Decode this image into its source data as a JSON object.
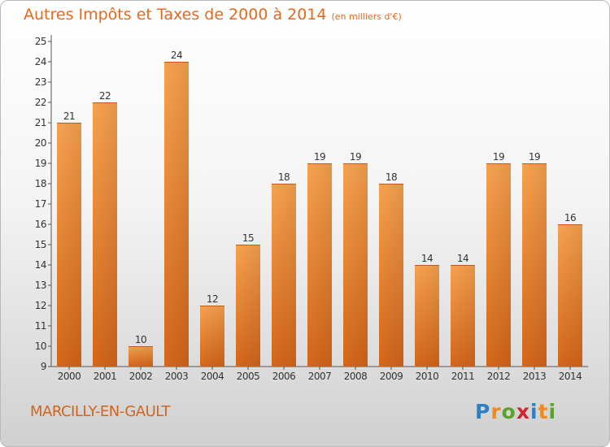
{
  "header": {
    "title": "Autres Impôts et Taxes de 2000 à 2014",
    "unit": "(en milliers d'€)"
  },
  "footer": {
    "commune": "MARCILLY-EN-GAULT",
    "logo_text": "Proxiti",
    "logo_letters": [
      {
        "char": "P",
        "color": "#2f7fc1"
      },
      {
        "char": "r",
        "color": "#f08a1c"
      },
      {
        "char": "o",
        "color": "#5aa32f"
      },
      {
        "char": "x",
        "color": "#d4252b"
      },
      {
        "char": "i",
        "color": "#2f7fc1"
      },
      {
        "char": "t",
        "color": "#f08a1c"
      },
      {
        "char": "i",
        "color": "#5aa32f"
      }
    ]
  },
  "chart_data": {
    "type": "bar",
    "title": "Autres Impôts et Taxes de 2000 à 2014",
    "subtitle": "(en milliers d'€)",
    "xlabel": "",
    "ylabel": "",
    "categories": [
      "2000",
      "2001",
      "2002",
      "2003",
      "2004",
      "2005",
      "2006",
      "2007",
      "2008",
      "2009",
      "2010",
      "2011",
      "2012",
      "2013",
      "2014"
    ],
    "values": [
      21,
      22,
      10,
      24,
      12,
      15,
      18,
      19,
      19,
      18,
      14,
      14,
      19,
      19,
      16
    ],
    "ylim": [
      9,
      25
    ],
    "yticks": [
      9,
      10,
      11,
      12,
      13,
      14,
      15,
      16,
      17,
      18,
      19,
      20,
      21,
      22,
      23,
      24,
      25
    ],
    "grid": false,
    "bar_color": "#f08a2c"
  }
}
